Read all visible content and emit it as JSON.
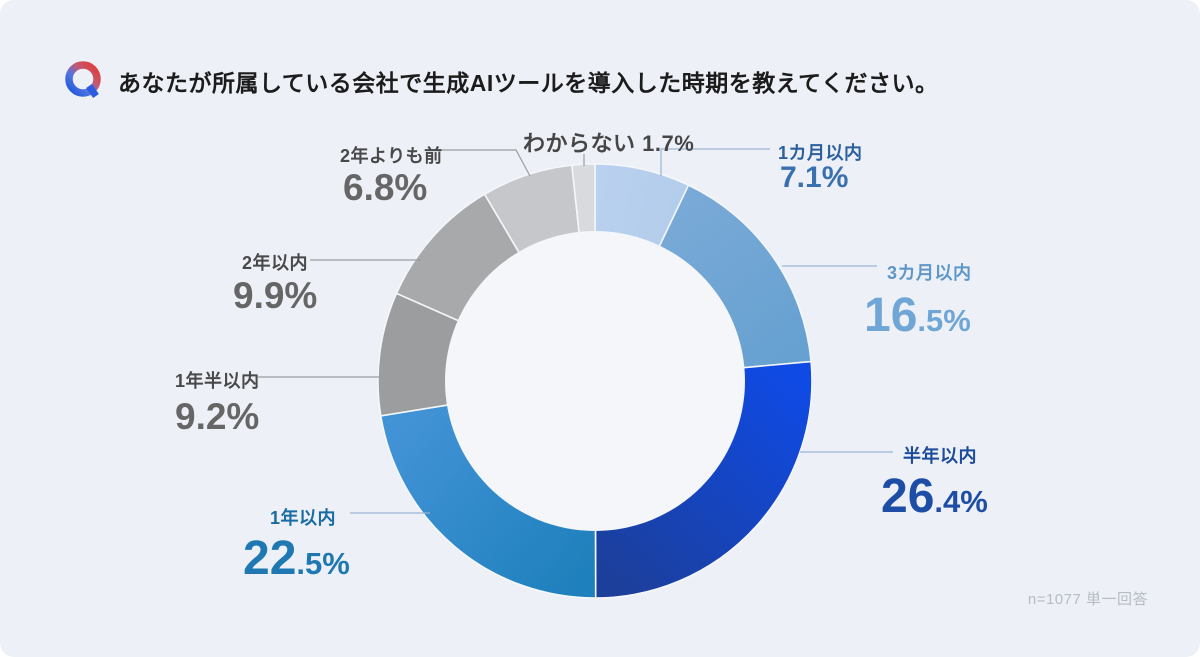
{
  "header": {
    "icon": "q-gradient-logo",
    "title": "あなたが所属している会社で生成AIツールを導入した時期を教えてください。"
  },
  "footer": {
    "sample_note": "n=1077 単一回答"
  },
  "colors": {
    "background": "#edf1f7",
    "hole": "#f4f6fa",
    "separator": "#f4f6fa",
    "q_logo_blue": "#1d55d8",
    "q_logo_red": "#e63a2e"
  },
  "chart_data": {
    "type": "pie",
    "subtype": "donut",
    "title": "あなたが所属している会社で生成AIツールを導入した時期を教えてください。",
    "note": "n=1077 単一回答",
    "unit": "%",
    "start_angle_deg": 0,
    "direction": "clockwise",
    "segments": [
      {
        "label": "1カ月以内",
        "value": 7.1,
        "colors": [
          "#b9d1ee",
          "#b3cdec"
        ],
        "label_color": "#2b5f9e",
        "value_color": "#3a70b0",
        "line_color": "#9db3d2"
      },
      {
        "label": "3カ月以内",
        "value": 16.5,
        "colors": [
          "#79a9d6",
          "#66a1d1"
        ],
        "label_color": "#5e97c8",
        "value_color": "#6fa6d6",
        "line_color": "#9db3d2"
      },
      {
        "label": "半年以内",
        "value": 26.4,
        "colors": [
          "#0f4ae4",
          "#1c3f9b"
        ],
        "label_color": "#1d4b9c",
        "value_color": "#1e4da5",
        "line_color": "#9db3d2"
      },
      {
        "label": "1年以内",
        "value": 22.5,
        "colors": [
          "#1e80bc",
          "#4293d6"
        ],
        "label_color": "#1a6ba4",
        "value_color": "#1f78b2",
        "line_color": "#9db3d2"
      },
      {
        "label": "1年半以内",
        "value": 9.2,
        "colors": [
          "#9c9d9f",
          "#9c9d9f"
        ],
        "label_color": "#494949",
        "value_color": "#666666",
        "line_color": "#9a9ca0"
      },
      {
        "label": "2年以内",
        "value": 9.9,
        "colors": [
          "#a8a9ab",
          "#a8a9ab"
        ],
        "label_color": "#494949",
        "value_color": "#666666",
        "line_color": "#9a9ca0"
      },
      {
        "label": "2年よりも前",
        "value": 6.8,
        "colors": [
          "#c5c7ca",
          "#c5c7ca"
        ],
        "label_color": "#494949",
        "value_color": "#666666",
        "line_color": "#9a9ca0"
      },
      {
        "label": "わからない",
        "value": 1.7,
        "colors": [
          "#d8dade",
          "#d8dade"
        ],
        "label_color": "#464646",
        "value_color": "#464646",
        "line_color": "#9a9ca0"
      }
    ]
  }
}
